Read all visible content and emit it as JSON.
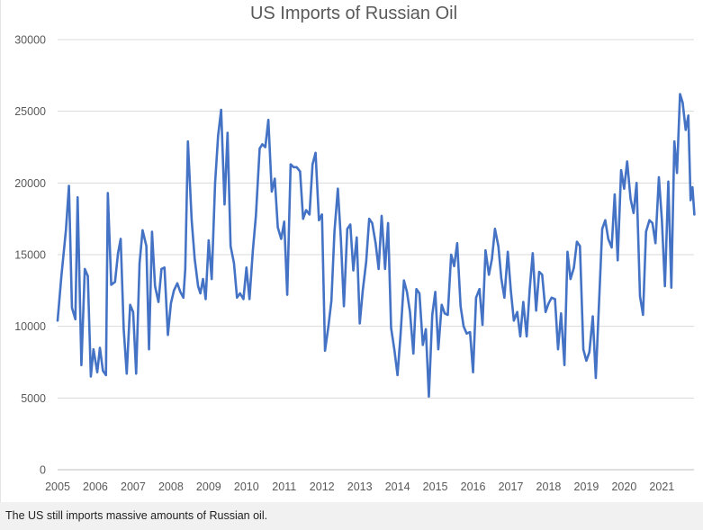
{
  "caption": "The US still imports massive amounts of Russian oil.",
  "chart_data": {
    "type": "line",
    "title": "US Imports of Russian Oil",
    "xlabel": "",
    "ylabel": "",
    "xlim": [
      2005,
      2021.85
    ],
    "ylim": [
      0,
      30000
    ],
    "x_ticks": [
      "2005",
      "2006",
      "2007",
      "2008",
      "2009",
      "2010",
      "2011",
      "2012",
      "2013",
      "2014",
      "2015",
      "2016",
      "2017",
      "2018",
      "2019",
      "2020",
      "2021"
    ],
    "y_ticks": [
      0,
      5000,
      10000,
      15000,
      20000,
      25000,
      30000
    ],
    "grid": "horizontal",
    "legend": "none",
    "colors": {
      "line": "#4472c4",
      "grid": "#d9d9d9",
      "text": "#595959"
    },
    "series": [
      {
        "points": [
          [
            2005.0,
            10400
          ],
          [
            2005.1,
            13500
          ],
          [
            2005.22,
            16700
          ],
          [
            2005.3,
            19800
          ],
          [
            2005.38,
            11300
          ],
          [
            2005.47,
            10500
          ],
          [
            2005.53,
            19000
          ],
          [
            2005.63,
            7300
          ],
          [
            2005.72,
            14000
          ],
          [
            2005.8,
            13500
          ],
          [
            2005.88,
            6500
          ],
          [
            2005.95,
            8400
          ],
          [
            2006.05,
            6800
          ],
          [
            2006.12,
            8500
          ],
          [
            2006.2,
            6900
          ],
          [
            2006.28,
            6600
          ],
          [
            2006.33,
            19300
          ],
          [
            2006.42,
            12900
          ],
          [
            2006.52,
            13100
          ],
          [
            2006.6,
            15100
          ],
          [
            2006.67,
            16100
          ],
          [
            2006.75,
            9800
          ],
          [
            2006.83,
            6700
          ],
          [
            2006.92,
            11500
          ],
          [
            2007.0,
            11000
          ],
          [
            2007.08,
            6700
          ],
          [
            2007.17,
            14400
          ],
          [
            2007.25,
            16700
          ],
          [
            2007.35,
            15600
          ],
          [
            2007.42,
            8400
          ],
          [
            2007.5,
            16600
          ],
          [
            2007.58,
            12800
          ],
          [
            2007.67,
            11700
          ],
          [
            2007.75,
            14000
          ],
          [
            2007.83,
            14100
          ],
          [
            2007.92,
            9400
          ],
          [
            2008.0,
            11600
          ],
          [
            2008.08,
            12500
          ],
          [
            2008.17,
            13000
          ],
          [
            2008.25,
            12400
          ],
          [
            2008.33,
            12000
          ],
          [
            2008.38,
            14000
          ],
          [
            2008.45,
            22900
          ],
          [
            2008.55,
            17400
          ],
          [
            2008.63,
            14700
          ],
          [
            2008.72,
            12800
          ],
          [
            2008.78,
            12300
          ],
          [
            2008.85,
            13300
          ],
          [
            2008.92,
            11900
          ],
          [
            2009.0,
            16000
          ],
          [
            2009.08,
            13300
          ],
          [
            2009.17,
            20000
          ],
          [
            2009.25,
            23300
          ],
          [
            2009.33,
            25100
          ],
          [
            2009.42,
            18500
          ],
          [
            2009.5,
            23500
          ],
          [
            2009.58,
            15600
          ],
          [
            2009.67,
            14400
          ],
          [
            2009.75,
            12000
          ],
          [
            2009.83,
            12300
          ],
          [
            2009.92,
            11900
          ],
          [
            2010.0,
            14100
          ],
          [
            2010.08,
            11900
          ],
          [
            2010.17,
            15300
          ],
          [
            2010.25,
            17700
          ],
          [
            2010.35,
            22400
          ],
          [
            2010.42,
            22700
          ],
          [
            2010.5,
            22500
          ],
          [
            2010.58,
            24400
          ],
          [
            2010.67,
            19400
          ],
          [
            2010.75,
            20300
          ],
          [
            2010.83,
            16900
          ],
          [
            2010.92,
            16100
          ],
          [
            2011.0,
            17300
          ],
          [
            2011.08,
            12200
          ],
          [
            2011.17,
            21300
          ],
          [
            2011.25,
            21100
          ],
          [
            2011.33,
            21100
          ],
          [
            2011.42,
            20800
          ],
          [
            2011.5,
            17500
          ],
          [
            2011.58,
            18100
          ],
          [
            2011.67,
            17800
          ],
          [
            2011.75,
            21300
          ],
          [
            2011.83,
            22100
          ],
          [
            2011.92,
            17400
          ],
          [
            2012.0,
            17800
          ],
          [
            2012.08,
            8300
          ],
          [
            2012.17,
            10000
          ],
          [
            2012.25,
            11800
          ],
          [
            2012.33,
            16600
          ],
          [
            2012.42,
            19600
          ],
          [
            2012.5,
            16100
          ],
          [
            2012.58,
            11400
          ],
          [
            2012.67,
            16800
          ],
          [
            2012.75,
            17100
          ],
          [
            2012.83,
            13900
          ],
          [
            2012.92,
            16200
          ],
          [
            2013.0,
            10200
          ],
          [
            2013.08,
            12500
          ],
          [
            2013.17,
            14500
          ],
          [
            2013.25,
            17500
          ],
          [
            2013.33,
            17200
          ],
          [
            2013.42,
            15800
          ],
          [
            2013.5,
            14000
          ],
          [
            2013.58,
            17700
          ],
          [
            2013.67,
            14000
          ],
          [
            2013.75,
            17200
          ],
          [
            2013.83,
            9900
          ],
          [
            2013.92,
            8300
          ],
          [
            2014.0,
            6600
          ],
          [
            2014.08,
            9400
          ],
          [
            2014.17,
            13200
          ],
          [
            2014.25,
            12400
          ],
          [
            2014.33,
            11000
          ],
          [
            2014.42,
            8100
          ],
          [
            2014.5,
            12600
          ],
          [
            2014.58,
            12300
          ],
          [
            2014.67,
            8700
          ],
          [
            2014.75,
            9800
          ],
          [
            2014.83,
            5100
          ],
          [
            2014.92,
            10800
          ],
          [
            2015.0,
            12400
          ],
          [
            2015.08,
            8400
          ],
          [
            2015.17,
            11500
          ],
          [
            2015.25,
            10900
          ],
          [
            2015.33,
            10800
          ],
          [
            2015.42,
            15000
          ],
          [
            2015.5,
            14200
          ],
          [
            2015.58,
            15800
          ],
          [
            2015.67,
            11400
          ],
          [
            2015.75,
            10000
          ],
          [
            2015.83,
            9500
          ],
          [
            2015.92,
            9600
          ],
          [
            2016.0,
            6800
          ],
          [
            2016.08,
            12000
          ],
          [
            2016.17,
            12600
          ],
          [
            2016.25,
            10100
          ],
          [
            2016.33,
            15300
          ],
          [
            2016.42,
            13600
          ],
          [
            2016.5,
            14700
          ],
          [
            2016.58,
            16800
          ],
          [
            2016.67,
            15600
          ],
          [
            2016.75,
            13300
          ],
          [
            2016.83,
            12000
          ],
          [
            2016.92,
            15200
          ],
          [
            2017.0,
            12500
          ],
          [
            2017.08,
            10400
          ],
          [
            2017.17,
            11000
          ],
          [
            2017.25,
            9300
          ],
          [
            2017.33,
            11700
          ],
          [
            2017.42,
            9300
          ],
          [
            2017.5,
            12600
          ],
          [
            2017.58,
            15100
          ],
          [
            2017.67,
            11100
          ],
          [
            2017.75,
            13800
          ],
          [
            2017.83,
            13600
          ],
          [
            2017.92,
            11000
          ],
          [
            2018.0,
            11600
          ],
          [
            2018.08,
            12000
          ],
          [
            2018.17,
            11900
          ],
          [
            2018.25,
            8400
          ],
          [
            2018.33,
            10900
          ],
          [
            2018.42,
            7300
          ],
          [
            2018.5,
            15200
          ],
          [
            2018.58,
            13300
          ],
          [
            2018.67,
            14100
          ],
          [
            2018.75,
            15900
          ],
          [
            2018.83,
            15600
          ],
          [
            2018.92,
            8400
          ],
          [
            2019.0,
            7600
          ],
          [
            2019.08,
            8200
          ],
          [
            2019.17,
            10700
          ],
          [
            2019.25,
            6400
          ],
          [
            2019.33,
            11300
          ],
          [
            2019.42,
            16800
          ],
          [
            2019.5,
            17400
          ],
          [
            2019.58,
            16100
          ],
          [
            2019.67,
            15500
          ],
          [
            2019.75,
            19200
          ],
          [
            2019.83,
            14600
          ],
          [
            2019.92,
            20900
          ],
          [
            2020.0,
            19600
          ],
          [
            2020.08,
            21500
          ],
          [
            2020.17,
            18900
          ],
          [
            2020.25,
            17900
          ],
          [
            2020.33,
            20000
          ],
          [
            2020.42,
            12100
          ],
          [
            2020.5,
            10800
          ],
          [
            2020.58,
            16600
          ],
          [
            2020.67,
            17400
          ],
          [
            2020.75,
            17200
          ],
          [
            2020.83,
            15800
          ],
          [
            2020.92,
            20400
          ],
          [
            2021.0,
            17400
          ],
          [
            2021.08,
            12800
          ],
          [
            2021.17,
            20100
          ],
          [
            2021.25,
            12700
          ],
          [
            2021.33,
            22900
          ],
          [
            2021.4,
            20700
          ],
          [
            2021.48,
            26200
          ],
          [
            2021.55,
            25600
          ],
          [
            2021.63,
            23700
          ],
          [
            2021.7,
            24700
          ],
          [
            2021.76,
            18800
          ],
          [
            2021.81,
            19700
          ],
          [
            2021.86,
            17800
          ]
        ]
      }
    ]
  }
}
